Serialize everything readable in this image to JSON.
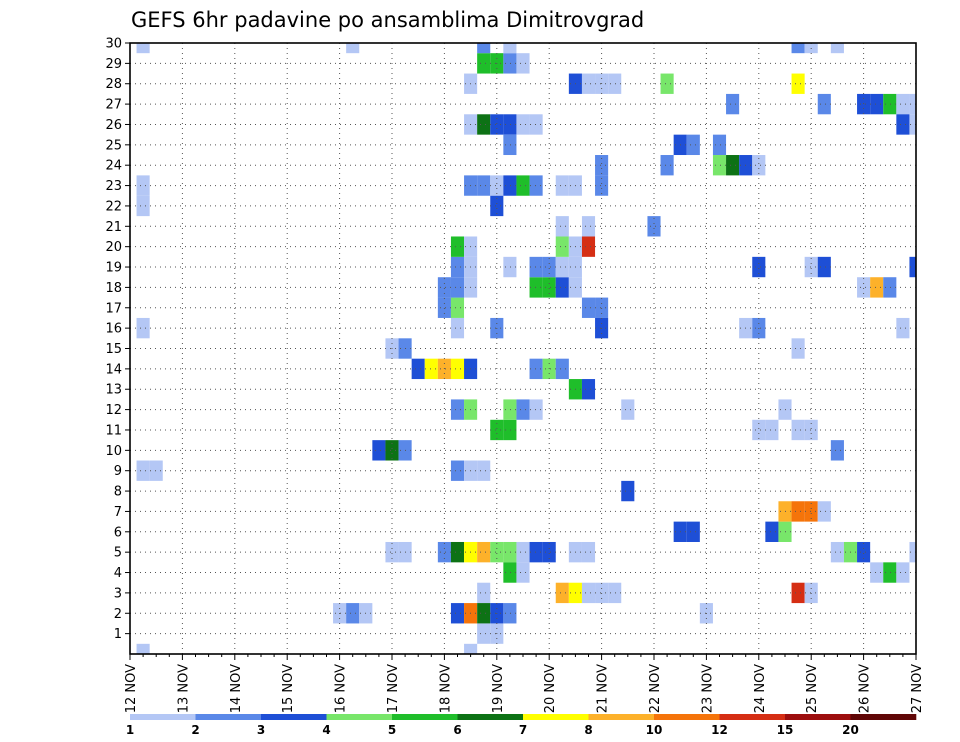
{
  "chart_data": {
    "type": "heatmap",
    "title": "GEFS 6hr padavine po ansamblima Dimitrovgrad",
    "x_categories": [
      "12 NOV",
      "13 NOV",
      "14 NOV",
      "15 NOV",
      "16 NOV",
      "17 NOV",
      "18 NOV",
      "19 NOV",
      "20 NOV",
      "21 NOV",
      "22 NOV",
      "23 NOV",
      "24 NOV",
      "25 NOV",
      "26 NOV",
      "27 NOV"
    ],
    "x_range": [
      0,
      15
    ],
    "x_step": 0.25,
    "y_categories": [
      "1",
      "2",
      "3",
      "4",
      "5",
      "6",
      "7",
      "8",
      "9",
      "10",
      "11",
      "12",
      "13",
      "14",
      "15",
      "16",
      "17",
      "18",
      "19",
      "20",
      "21",
      "22",
      "23",
      "24",
      "25",
      "26",
      "27",
      "28",
      "29",
      "30"
    ],
    "y_range": [
      0,
      30
    ],
    "grid": true,
    "legend": "bottom colorbar",
    "colorbar": {
      "labels": [
        "1",
        "2",
        "3",
        "4",
        "5",
        "6",
        "7",
        "8",
        "10",
        "12",
        "15",
        "20"
      ],
      "colors": [
        "#b4c7f5",
        "#5a88e8",
        "#1e4fd6",
        "#78e66a",
        "#1fbe2a",
        "#0d7215",
        "#ffff00",
        "#fdb12a",
        "#f5740a",
        "#d52e14",
        "#9d0e0e",
        "#600606"
      ]
    },
    "cells": [
      {
        "x": 0.25,
        "y": 0,
        "c": 1
      },
      {
        "x": 0.25,
        "y": 9,
        "c": 1
      },
      {
        "x": 0.5,
        "y": 9,
        "c": 1
      },
      {
        "x": 0.25,
        "y": 16,
        "c": 1
      },
      {
        "x": 0.25,
        "y": 22,
        "c": 1
      },
      {
        "x": 0.25,
        "y": 23,
        "c": 1
      },
      {
        "x": 0.25,
        "y": 30,
        "c": 1
      },
      {
        "x": 4.25,
        "y": 30,
        "c": 1
      },
      {
        "x": 4,
        "y": 2,
        "c": 1
      },
      {
        "x": 4.25,
        "y": 2,
        "c": 2
      },
      {
        "x": 4.5,
        "y": 2,
        "c": 1
      },
      {
        "x": 5,
        "y": 5,
        "c": 1
      },
      {
        "x": 5.25,
        "y": 5,
        "c": 1
      },
      {
        "x": 4.75,
        "y": 10,
        "c": 3
      },
      {
        "x": 5,
        "y": 10,
        "c": 6
      },
      {
        "x": 5.25,
        "y": 10,
        "c": 2
      },
      {
        "x": 5,
        "y": 15,
        "c": 1
      },
      {
        "x": 5.25,
        "y": 15,
        "c": 2
      },
      {
        "x": 5.5,
        "y": 14,
        "c": 3
      },
      {
        "x": 5.75,
        "y": 14,
        "c": 7
      },
      {
        "x": 6,
        "y": 14,
        "c": 8
      },
      {
        "x": 6.25,
        "y": 14,
        "c": 7
      },
      {
        "x": 6.5,
        "y": 14,
        "c": 3
      },
      {
        "x": 6,
        "y": 18,
        "c": 2
      },
      {
        "x": 6,
        "y": 17,
        "c": 2
      },
      {
        "x": 6.25,
        "y": 17,
        "c": 4
      },
      {
        "x": 6.25,
        "y": 18,
        "c": 2
      },
      {
        "x": 6.5,
        "y": 18,
        "c": 1
      },
      {
        "x": 6.25,
        "y": 19,
        "c": 2
      },
      {
        "x": 6.5,
        "y": 19,
        "c": 1
      },
      {
        "x": 6.25,
        "y": 20,
        "c": 5
      },
      {
        "x": 6.5,
        "y": 20,
        "c": 1
      },
      {
        "x": 6.25,
        "y": 16,
        "c": 1
      },
      {
        "x": 6.25,
        "y": 12,
        "c": 2
      },
      {
        "x": 6.5,
        "y": 12,
        "c": 4
      },
      {
        "x": 6.25,
        "y": 9,
        "c": 2
      },
      {
        "x": 6.5,
        "y": 9,
        "c": 1
      },
      {
        "x": 6.75,
        "y": 9,
        "c": 1
      },
      {
        "x": 6,
        "y": 5,
        "c": 2
      },
      {
        "x": 6.25,
        "y": 5,
        "c": 6
      },
      {
        "x": 6.5,
        "y": 5,
        "c": 7
      },
      {
        "x": 6.75,
        "y": 5,
        "c": 8
      },
      {
        "x": 7,
        "y": 5,
        "c": 4
      },
      {
        "x": 7.25,
        "y": 5,
        "c": 4
      },
      {
        "x": 7.5,
        "y": 5,
        "c": 1
      },
      {
        "x": 7.25,
        "y": 4,
        "c": 5
      },
      {
        "x": 7.5,
        "y": 4,
        "c": 1
      },
      {
        "x": 6.75,
        "y": 3,
        "c": 1
      },
      {
        "x": 6.25,
        "y": 2,
        "c": 3
      },
      {
        "x": 6.5,
        "y": 2,
        "c": 9
      },
      {
        "x": 6.75,
        "y": 2,
        "c": 6
      },
      {
        "x": 7,
        "y": 2,
        "c": 3
      },
      {
        "x": 7.25,
        "y": 2,
        "c": 2
      },
      {
        "x": 6.75,
        "y": 1,
        "c": 1
      },
      {
        "x": 7,
        "y": 1,
        "c": 1
      },
      {
        "x": 6.5,
        "y": 0,
        "c": 1
      },
      {
        "x": 6.5,
        "y": 23,
        "c": 2
      },
      {
        "x": 6.75,
        "y": 23,
        "c": 2
      },
      {
        "x": 7,
        "y": 23,
        "c": 1
      },
      {
        "x": 7.25,
        "y": 23,
        "c": 3
      },
      {
        "x": 7.5,
        "y": 23,
        "c": 5
      },
      {
        "x": 7.75,
        "y": 23,
        "c": 2
      },
      {
        "x": 8.25,
        "y": 23,
        "c": 1
      },
      {
        "x": 8.5,
        "y": 23,
        "c": 1
      },
      {
        "x": 9,
        "y": 23,
        "c": 2
      },
      {
        "x": 7,
        "y": 22,
        "c": 3
      },
      {
        "x": 6.5,
        "y": 26,
        "c": 1
      },
      {
        "x": 6.75,
        "y": 26,
        "c": 6
      },
      {
        "x": 7,
        "y": 26,
        "c": 3
      },
      {
        "x": 7.25,
        "y": 26,
        "c": 3
      },
      {
        "x": 7.5,
        "y": 26,
        "c": 1
      },
      {
        "x": 7.75,
        "y": 26,
        "c": 1
      },
      {
        "x": 7.25,
        "y": 25,
        "c": 2
      },
      {
        "x": 6.5,
        "y": 28,
        "c": 1
      },
      {
        "x": 6.75,
        "y": 29,
        "c": 5
      },
      {
        "x": 7,
        "y": 29,
        "c": 5
      },
      {
        "x": 7.25,
        "y": 29,
        "c": 2
      },
      {
        "x": 7.5,
        "y": 29,
        "c": 1
      },
      {
        "x": 6.75,
        "y": 30,
        "c": 2
      },
      {
        "x": 7.25,
        "y": 30,
        "c": 1
      },
      {
        "x": 7,
        "y": 16,
        "c": 2
      },
      {
        "x": 7.25,
        "y": 19,
        "c": 1
      },
      {
        "x": 7,
        "y": 11,
        "c": 5
      },
      {
        "x": 7.25,
        "y": 11,
        "c": 5
      },
      {
        "x": 7.25,
        "y": 12,
        "c": 4
      },
      {
        "x": 7.5,
        "y": 12,
        "c": 2
      },
      {
        "x": 7.75,
        "y": 12,
        "c": 1
      },
      {
        "x": 7.75,
        "y": 14,
        "c": 2
      },
      {
        "x": 8,
        "y": 14,
        "c": 4
      },
      {
        "x": 8.25,
        "y": 14,
        "c": 2
      },
      {
        "x": 7.75,
        "y": 18,
        "c": 5
      },
      {
        "x": 8,
        "y": 18,
        "c": 5
      },
      {
        "x": 8.25,
        "y": 18,
        "c": 3
      },
      {
        "x": 8.5,
        "y": 18,
        "c": 1
      },
      {
        "x": 7.75,
        "y": 19,
        "c": 2
      },
      {
        "x": 8,
        "y": 19,
        "c": 2
      },
      {
        "x": 8.25,
        "y": 19,
        "c": 1
      },
      {
        "x": 8.5,
        "y": 19,
        "c": 1
      },
      {
        "x": 8.25,
        "y": 20,
        "c": 4
      },
      {
        "x": 8.5,
        "y": 20,
        "c": 1
      },
      {
        "x": 8.75,
        "y": 20,
        "c": 10
      },
      {
        "x": 8.25,
        "y": 21,
        "c": 1
      },
      {
        "x": 8.75,
        "y": 21,
        "c": 1
      },
      {
        "x": 8.75,
        "y": 17,
        "c": 2
      },
      {
        "x": 9,
        "y": 17,
        "c": 2
      },
      {
        "x": 9,
        "y": 16,
        "c": 3
      },
      {
        "x": 8.5,
        "y": 13,
        "c": 5
      },
      {
        "x": 8.75,
        "y": 13,
        "c": 3
      },
      {
        "x": 7.75,
        "y": 5,
        "c": 3
      },
      {
        "x": 8,
        "y": 5,
        "c": 3
      },
      {
        "x": 8.5,
        "y": 5,
        "c": 1
      },
      {
        "x": 8.75,
        "y": 5,
        "c": 1
      },
      {
        "x": 8.25,
        "y": 3,
        "c": 8
      },
      {
        "x": 8.5,
        "y": 3,
        "c": 7
      },
      {
        "x": 8.75,
        "y": 3,
        "c": 1
      },
      {
        "x": 9,
        "y": 3,
        "c": 1
      },
      {
        "x": 9.25,
        "y": 3,
        "c": 1
      },
      {
        "x": 9.5,
        "y": 12,
        "c": 1
      },
      {
        "x": 9.5,
        "y": 8,
        "c": 3
      },
      {
        "x": 9,
        "y": 24,
        "c": 2
      },
      {
        "x": 8.5,
        "y": 28,
        "c": 3
      },
      {
        "x": 8.75,
        "y": 28,
        "c": 1
      },
      {
        "x": 9,
        "y": 28,
        "c": 1
      },
      {
        "x": 9.25,
        "y": 28,
        "c": 1
      },
      {
        "x": 10,
        "y": 21,
        "c": 2
      },
      {
        "x": 10.25,
        "y": 24,
        "c": 2
      },
      {
        "x": 10.25,
        "y": 28,
        "c": 4
      },
      {
        "x": 10.5,
        "y": 25,
        "c": 3
      },
      {
        "x": 10.75,
        "y": 25,
        "c": 2
      },
      {
        "x": 10.5,
        "y": 6,
        "c": 3
      },
      {
        "x": 10.75,
        "y": 6,
        "c": 3
      },
      {
        "x": 11,
        "y": 2,
        "c": 1
      },
      {
        "x": 11.25,
        "y": 25,
        "c": 2
      },
      {
        "x": 11.25,
        "y": 24,
        "c": 4
      },
      {
        "x": 11.5,
        "y": 24,
        "c": 6
      },
      {
        "x": 11.75,
        "y": 24,
        "c": 3
      },
      {
        "x": 12,
        "y": 24,
        "c": 1
      },
      {
        "x": 11.5,
        "y": 27,
        "c": 2
      },
      {
        "x": 11.75,
        "y": 16,
        "c": 1
      },
      {
        "x": 12,
        "y": 16,
        "c": 2
      },
      {
        "x": 12,
        "y": 19,
        "c": 3
      },
      {
        "x": 12,
        "y": 11,
        "c": 1
      },
      {
        "x": 12.25,
        "y": 11,
        "c": 1
      },
      {
        "x": 12.25,
        "y": 6,
        "c": 3
      },
      {
        "x": 12.5,
        "y": 6,
        "c": 4
      },
      {
        "x": 12.5,
        "y": 7,
        "c": 8
      },
      {
        "x": 12.75,
        "y": 7,
        "c": 9
      },
      {
        "x": 13,
        "y": 7,
        "c": 9
      },
      {
        "x": 13.25,
        "y": 7,
        "c": 1
      },
      {
        "x": 12.5,
        "y": 12,
        "c": 1
      },
      {
        "x": 12.75,
        "y": 11,
        "c": 1
      },
      {
        "x": 13,
        "y": 11,
        "c": 1
      },
      {
        "x": 12.75,
        "y": 15,
        "c": 1
      },
      {
        "x": 12.75,
        "y": 28,
        "c": 7
      },
      {
        "x": 12.75,
        "y": 3,
        "c": 10
      },
      {
        "x": 13,
        "y": 3,
        "c": 1
      },
      {
        "x": 13,
        "y": 19,
        "c": 1
      },
      {
        "x": 13.25,
        "y": 19,
        "c": 3
      },
      {
        "x": 13.25,
        "y": 27,
        "c": 2
      },
      {
        "x": 12.75,
        "y": 30,
        "c": 2
      },
      {
        "x": 13,
        "y": 30,
        "c": 1
      },
      {
        "x": 13.5,
        "y": 30,
        "c": 1
      },
      {
        "x": 13.5,
        "y": 10,
        "c": 2
      },
      {
        "x": 13.5,
        "y": 5,
        "c": 1
      },
      {
        "x": 13.75,
        "y": 5,
        "c": 4
      },
      {
        "x": 14,
        "y": 5,
        "c": 3
      },
      {
        "x": 14.25,
        "y": 4,
        "c": 1
      },
      {
        "x": 14.5,
        "y": 4,
        "c": 5
      },
      {
        "x": 14.75,
        "y": 4,
        "c": 1
      },
      {
        "x": 14,
        "y": 18,
        "c": 1
      },
      {
        "x": 14.25,
        "y": 18,
        "c": 8
      },
      {
        "x": 14.5,
        "y": 18,
        "c": 2
      },
      {
        "x": 14.75,
        "y": 16,
        "c": 1
      },
      {
        "x": 14,
        "y": 27,
        "c": 3
      },
      {
        "x": 14.25,
        "y": 27,
        "c": 3
      },
      {
        "x": 14.5,
        "y": 27,
        "c": 5
      },
      {
        "x": 14.75,
        "y": 27,
        "c": 1
      },
      {
        "x": 14.75,
        "y": 26,
        "c": 3
      },
      {
        "x": 15,
        "y": 19,
        "c": 3
      },
      {
        "x": 15,
        "y": 5,
        "c": 1
      },
      {
        "x": 15,
        "y": 26,
        "c": 1
      },
      {
        "x": 15,
        "y": 27,
        "c": 1
      }
    ]
  }
}
